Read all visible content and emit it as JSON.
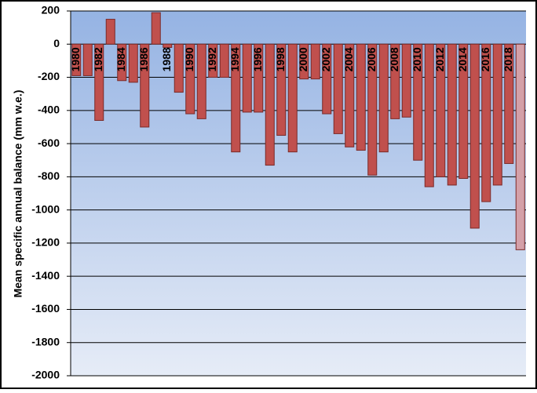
{
  "chart_data": {
    "type": "bar",
    "y_label": "Mean specific annual balance (mm w.e.)",
    "categories": [
      "1980",
      null,
      "1982",
      null,
      "1984",
      null,
      "1986",
      null,
      "1988",
      null,
      "1990",
      null,
      "1992",
      null,
      "1994",
      null,
      "1996",
      null,
      "1998",
      null,
      "2000",
      null,
      "2002",
      null,
      "2004",
      null,
      "2006",
      null,
      "2008",
      null,
      "2010",
      null,
      "2012",
      null,
      "2014",
      null,
      "2016",
      null,
      "2018",
      null
    ],
    "values": [
      -190,
      -190,
      -460,
      150,
      -220,
      -230,
      -500,
      190,
      -20,
      -290,
      -420,
      -450,
      -200,
      -200,
      -650,
      -410,
      -410,
      -730,
      -550,
      -650,
      -210,
      -210,
      -420,
      -540,
      -620,
      -640,
      -790,
      -650,
      -450,
      -440,
      -700,
      -860,
      -800,
      -850,
      -810,
      -1110,
      -950,
      -850,
      -720,
      -1240
    ],
    "colors": [
      "#c0504d",
      "#c0504d",
      "#c0504d",
      "#c0504d",
      "#c0504d",
      "#c0504d",
      "#c0504d",
      "#c0504d",
      "#c0504d",
      "#c0504d",
      "#c0504d",
      "#c0504d",
      "#c0504d",
      "#c0504d",
      "#c0504d",
      "#c0504d",
      "#c0504d",
      "#c0504d",
      "#c0504d",
      "#c0504d",
      "#c0504d",
      "#c0504d",
      "#c0504d",
      "#c0504d",
      "#c0504d",
      "#c0504d",
      "#c0504d",
      "#c0504d",
      "#c0504d",
      "#c0504d",
      "#c0504d",
      "#c0504d",
      "#c0504d",
      "#c0504d",
      "#c0504d",
      "#c0504d",
      "#c0504d",
      "#c0504d",
      "#c0504d",
      "#d4a0a8"
    ],
    "ylim": [
      -2000,
      200
    ],
    "yticks": [
      -2000,
      -1800,
      -1600,
      -1400,
      -1200,
      -1000,
      -800,
      -600,
      -400,
      -200,
      0,
      200
    ],
    "grid": true
  }
}
